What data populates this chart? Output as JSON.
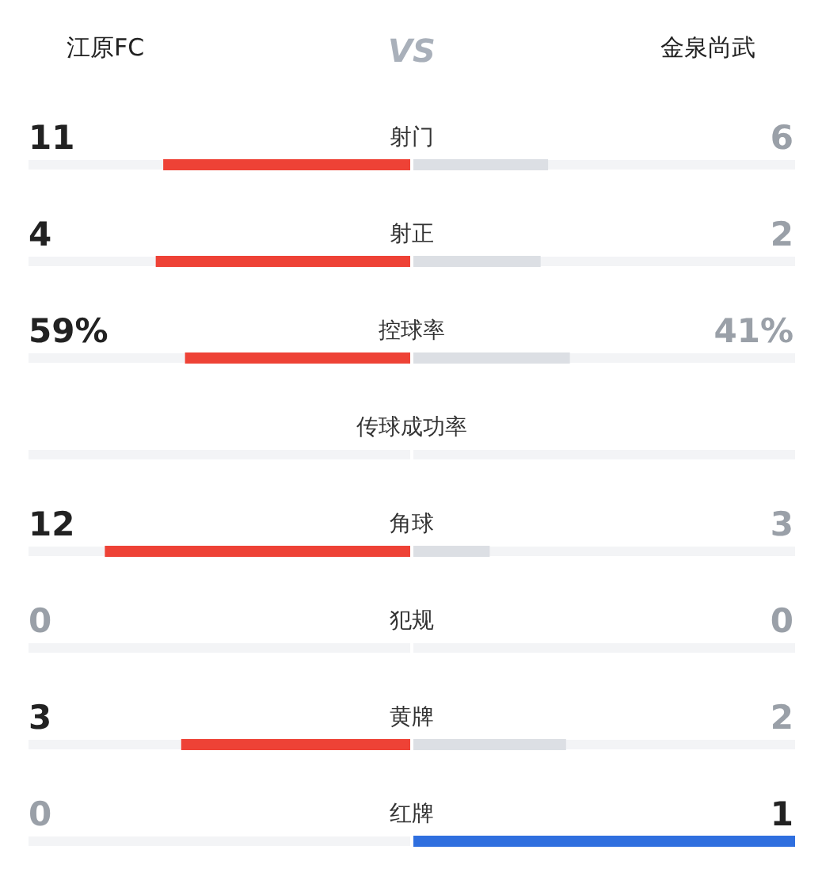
{
  "chart_data": {
    "type": "other",
    "annotations": [
      "VS"
    ],
    "categories": [
      "射门",
      "射正",
      "控球率",
      "传球成功率",
      "角球",
      "犯规",
      "黄牌",
      "红牌"
    ],
    "series": [
      {
        "name": "江原FC",
        "values": [
          11,
          4,
          59,
          null,
          12,
          0,
          3,
          0
        ],
        "value_labels": [
          "11",
          "4",
          "59%",
          null,
          "12",
          "0",
          "3",
          "0"
        ],
        "colors": [
          "#ee4236",
          "#ee4236",
          "#ee4236",
          null,
          "#ee4236",
          "#dcdfe4",
          "#ee4236",
          "#dcdfe4"
        ]
      },
      {
        "name": "金泉尚武",
        "values": [
          6,
          2,
          41,
          null,
          3,
          0,
          2,
          1
        ],
        "value_labels": [
          "6",
          "2",
          "41%",
          null,
          "3",
          "0",
          "2",
          "1"
        ],
        "colors": [
          "#dcdfe4",
          "#dcdfe4",
          "#dcdfe4",
          null,
          "#dcdfe4",
          "#dcdfe4",
          "#dcdfe4",
          "#2f6fdf"
        ]
      }
    ]
  }
}
